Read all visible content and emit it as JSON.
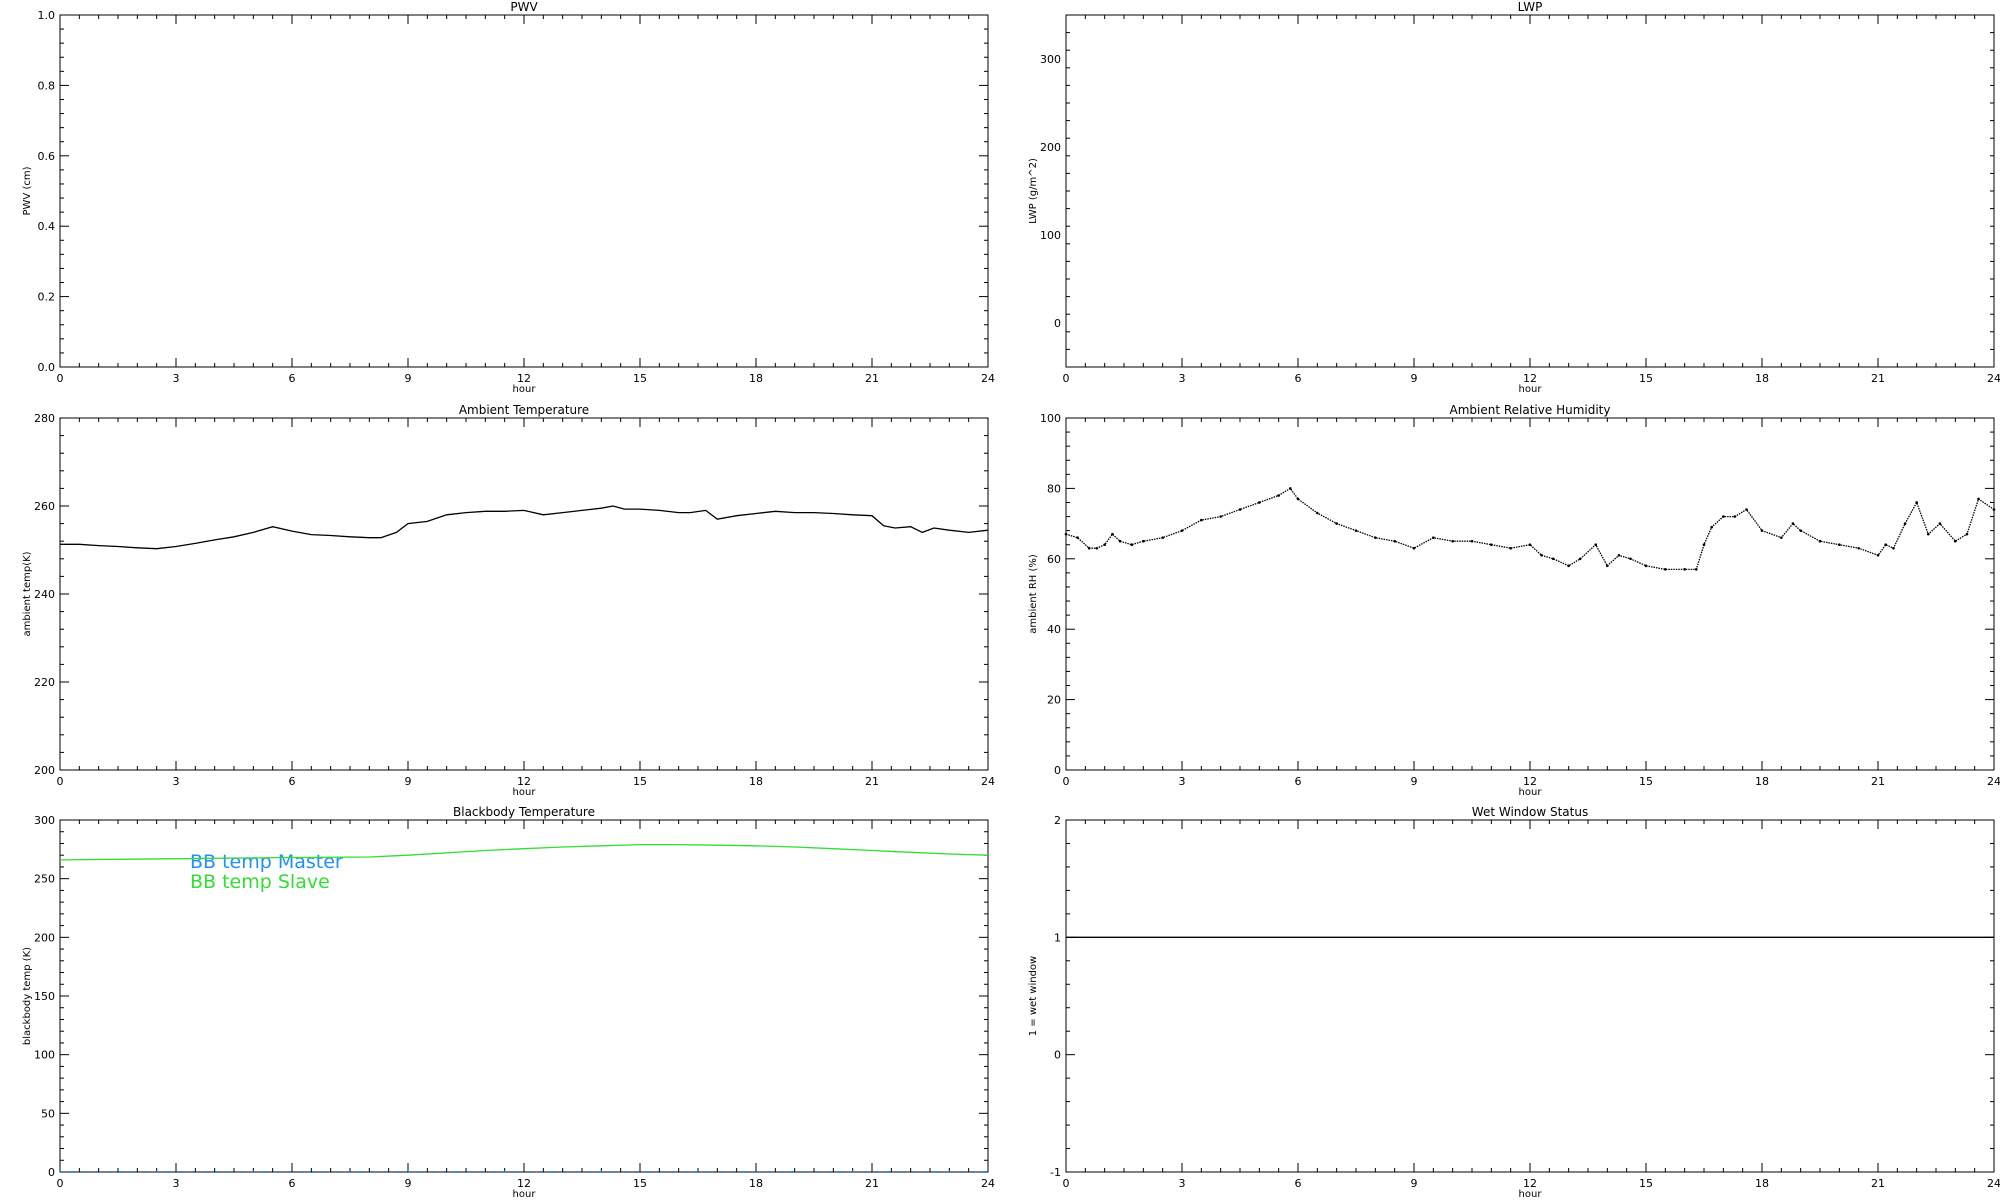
{
  "chart_data": [
    {
      "id": "pwv",
      "type": "line",
      "title": "PWV",
      "xlabel": "hour",
      "ylabel": "PWV (cm)",
      "xlim": [
        0,
        24
      ],
      "ylim": [
        0,
        1
      ],
      "xticks": [
        0,
        3,
        6,
        9,
        12,
        15,
        18,
        21,
        24
      ],
      "xtick_labels": [
        "0",
        "3",
        "6",
        "9",
        "12",
        "15",
        "18",
        "21",
        "24"
      ],
      "yticks": [
        0,
        0.2,
        0.4,
        0.6,
        0.8,
        1.0
      ],
      "ytick_labels": [
        "0.0",
        "0.2",
        "0.4",
        "0.6",
        "0.8",
        "1.0"
      ],
      "series": []
    },
    {
      "id": "lwp",
      "type": "line",
      "title": "LWP",
      "xlabel": "hour",
      "ylabel": "LWP (g/m^2)",
      "xlim": [
        0,
        24
      ],
      "ylim": [
        -50,
        350
      ],
      "xticks": [
        0,
        3,
        6,
        9,
        12,
        15,
        18,
        21,
        24
      ],
      "xtick_labels": [
        "0",
        "3",
        "6",
        "9",
        "12",
        "15",
        "18",
        "21",
        "24"
      ],
      "yticks": [
        0,
        100,
        200,
        300
      ],
      "ytick_labels": [
        "0",
        "100",
        "200",
        "300"
      ],
      "series": []
    },
    {
      "id": "ambtemp",
      "type": "line",
      "title": "Ambient Temperature",
      "xlabel": "hour",
      "ylabel": "ambient temp(K)",
      "xlim": [
        0,
        24
      ],
      "ylim": [
        200,
        280
      ],
      "xticks": [
        0,
        3,
        6,
        9,
        12,
        15,
        18,
        21,
        24
      ],
      "xtick_labels": [
        "0",
        "3",
        "6",
        "9",
        "12",
        "15",
        "18",
        "21",
        "24"
      ],
      "yticks": [
        200,
        220,
        240,
        260,
        280
      ],
      "ytick_labels": [
        "200",
        "220",
        "240",
        "260",
        "280"
      ],
      "series": [
        {
          "color": "#000000",
          "x": [
            0,
            0.5,
            1,
            1.5,
            2,
            2.5,
            3,
            3.5,
            4,
            4.5,
            5,
            5.5,
            6,
            6.5,
            7,
            7.5,
            8,
            8.3,
            8.7,
            9,
            9.5,
            10,
            10.5,
            11,
            11.5,
            12,
            12.5,
            13,
            13.5,
            14,
            14.3,
            14.6,
            15,
            15.5,
            16,
            16.3,
            16.7,
            17,
            17.5,
            18,
            18.5,
            19,
            19.5,
            20,
            20.5,
            21,
            21.3,
            21.6,
            22,
            22.3,
            22.6,
            23,
            23.5,
            24
          ],
          "y": [
            251.3,
            251.3,
            251.0,
            250.8,
            250.5,
            250.3,
            250.8,
            251.5,
            252.3,
            253.0,
            254.0,
            255.3,
            254.3,
            253.5,
            253.3,
            253.0,
            252.8,
            252.8,
            254.0,
            256.0,
            256.5,
            258.0,
            258.5,
            258.8,
            258.8,
            259.0,
            258.0,
            258.5,
            259.0,
            259.5,
            260.0,
            259.3,
            259.3,
            259.0,
            258.5,
            258.5,
            259.0,
            257.0,
            257.8,
            258.3,
            258.8,
            258.5,
            258.5,
            258.3,
            258.0,
            257.8,
            255.5,
            255.0,
            255.3,
            254.0,
            255.0,
            254.5,
            254.0,
            254.5
          ]
        }
      ]
    },
    {
      "id": "ambrh",
      "type": "scatter",
      "title": "Ambient Relative Humidity",
      "xlabel": "hour",
      "ylabel": "ambient RH (%)",
      "xlim": [
        0,
        24
      ],
      "ylim": [
        0,
        100
      ],
      "xticks": [
        0,
        3,
        6,
        9,
        12,
        15,
        18,
        21,
        24
      ],
      "xtick_labels": [
        "0",
        "3",
        "6",
        "9",
        "12",
        "15",
        "18",
        "21",
        "24"
      ],
      "yticks": [
        0,
        20,
        40,
        60,
        80,
        100
      ],
      "ytick_labels": [
        "0",
        "20",
        "40",
        "60",
        "80",
        "100"
      ],
      "series": [
        {
          "color": "#000000",
          "x": [
            0,
            0.3,
            0.6,
            0.8,
            1,
            1.2,
            1.4,
            1.7,
            2,
            2.5,
            3,
            3.5,
            4,
            4.5,
            5,
            5.5,
            5.8,
            6,
            6.5,
            7,
            7.5,
            8,
            8.5,
            9,
            9.5,
            10,
            10.5,
            11,
            11.5,
            12,
            12.3,
            12.6,
            13,
            13.3,
            13.7,
            14,
            14.3,
            14.6,
            15,
            15.5,
            16,
            16.3,
            16.5,
            16.7,
            17,
            17.3,
            17.6,
            18,
            18.5,
            18.8,
            19,
            19.5,
            20,
            20.5,
            21,
            21.2,
            21.4,
            21.7,
            22,
            22.3,
            22.6,
            23,
            23.3,
            23.6,
            24
          ],
          "y": [
            67,
            66,
            63,
            63,
            64,
            67,
            65,
            64,
            65,
            66,
            68,
            71,
            72,
            74,
            76,
            78,
            80,
            77,
            73,
            70,
            68,
            66,
            65,
            63,
            66,
            65,
            65,
            64,
            63,
            64,
            61,
            60,
            58,
            60,
            64,
            58,
            61,
            60,
            58,
            57,
            57,
            57,
            64,
            69,
            72,
            72,
            74,
            68,
            66,
            70,
            68,
            65,
            64,
            63,
            61,
            64,
            63,
            70,
            76,
            67,
            70,
            65,
            67,
            77,
            74
          ]
        }
      ]
    },
    {
      "id": "bbtemp",
      "type": "line",
      "title": "Blackbody Temperature",
      "xlabel": "hour",
      "ylabel": "blackbody temp (K)",
      "xlim": [
        0,
        24
      ],
      "ylim": [
        0,
        300
      ],
      "xticks": [
        0,
        3,
        6,
        9,
        12,
        15,
        18,
        21,
        24
      ],
      "xtick_labels": [
        "0",
        "3",
        "6",
        "9",
        "12",
        "15",
        "18",
        "21",
        "24"
      ],
      "yticks": [
        0,
        50,
        100,
        150,
        200,
        250,
        300
      ],
      "ytick_labels": [
        "0",
        "50",
        "100",
        "150",
        "200",
        "250",
        "300"
      ],
      "legend_placement": "upper-left inside plot",
      "series": [
        {
          "name": "BB temp Master",
          "color": "#1e90ff",
          "style": "dotted",
          "x": [
            0,
            3,
            6,
            9,
            12,
            15,
            18,
            21,
            24
          ],
          "y": [
            0,
            0,
            0,
            0,
            0,
            0,
            0,
            0,
            0
          ]
        },
        {
          "name": "BB temp Slave",
          "color": "#33dd33",
          "style": "solid",
          "x": [
            0,
            3,
            6,
            8,
            9,
            10,
            11,
            12,
            13,
            14,
            15,
            16,
            17,
            18,
            19,
            20,
            21,
            22,
            23,
            24
          ],
          "y": [
            266,
            267,
            268,
            268.5,
            270,
            272,
            274,
            275.5,
            277,
            278,
            279,
            279,
            278.5,
            278,
            277,
            275.5,
            274,
            272.5,
            271,
            270
          ]
        }
      ]
    },
    {
      "id": "wetwin",
      "type": "line",
      "title": "Wet Window Status",
      "xlabel": "hour",
      "ylabel": "1 = wet window",
      "xlim": [
        0,
        24
      ],
      "ylim": [
        -1,
        2
      ],
      "xticks": [
        0,
        3,
        6,
        9,
        12,
        15,
        18,
        21,
        24
      ],
      "xtick_labels": [
        "0",
        "3",
        "6",
        "9",
        "12",
        "15",
        "18",
        "21",
        "24"
      ],
      "yticks": [
        -1,
        0,
        1,
        2
      ],
      "ytick_labels": [
        "-1",
        "0",
        "1",
        "2"
      ],
      "series": [
        {
          "color": "#000000",
          "x": [
            0,
            24
          ],
          "y": [
            1,
            1
          ]
        }
      ]
    }
  ]
}
